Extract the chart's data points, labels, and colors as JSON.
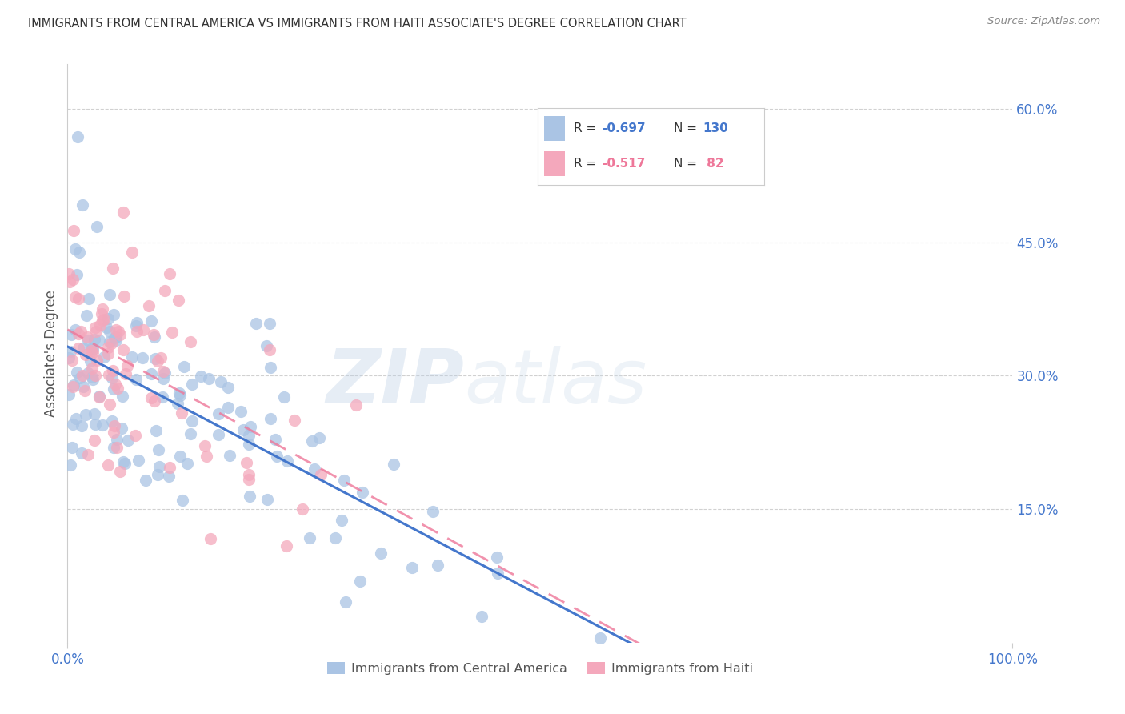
{
  "title": "IMMIGRANTS FROM CENTRAL AMERICA VS IMMIGRANTS FROM HAITI ASSOCIATE'S DEGREE CORRELATION CHART",
  "source": "Source: ZipAtlas.com",
  "ylabel": "Associate's Degree",
  "x_tick_labels": [
    "0.0%",
    "100.0%"
  ],
  "y_tick_labels": [
    "15.0%",
    "30.0%",
    "45.0%",
    "60.0%"
  ],
  "y_tick_vals": [
    0.15,
    0.3,
    0.45,
    0.6
  ],
  "legend_label_blue": "Immigrants from Central America",
  "legend_label_pink": "Immigrants from Haiti",
  "color_blue": "#aac4e4",
  "color_pink": "#f4a8bc",
  "line_color_blue": "#4477cc",
  "line_color_pink": "#ee7799",
  "watermark_zip": "ZIP",
  "watermark_atlas": "atlas",
  "background_color": "#ffffff",
  "grid_color": "#cccccc",
  "title_color": "#333333",
  "axis_tick_color": "#4477cc",
  "blue_seed": 42,
  "pink_seed": 7,
  "n_blue": 130,
  "n_pink": 82,
  "r_blue": -0.697,
  "r_pink": -0.517,
  "xmin": 0.0,
  "xmax": 1.0,
  "ymin": 0.0,
  "ymax": 0.65
}
